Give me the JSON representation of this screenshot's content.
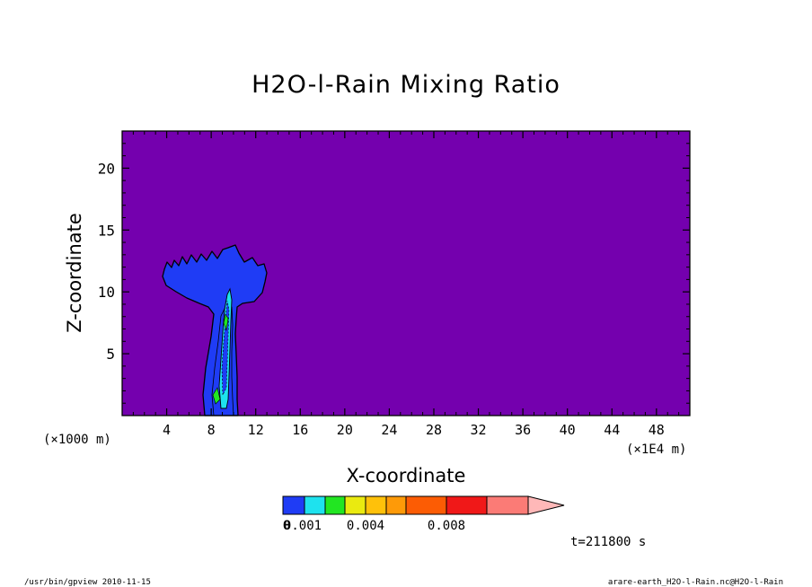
{
  "chart_data": {
    "type": "contour",
    "title": "H2O-l-Rain Mixing Ratio",
    "xlabel": "X-coordinate",
    "ylabel": "Z-coordinate",
    "x_unit_left": "(×1000 m)",
    "x_unit_right": "(×1E4 m)",
    "xlim": [
      0,
      51
    ],
    "ylim": [
      0,
      23
    ],
    "x_ticks": [
      "4",
      "8",
      "12",
      "16",
      "20",
      "24",
      "28",
      "32",
      "36",
      "40",
      "44",
      "48"
    ],
    "y_ticks": [
      "5",
      "10",
      "15",
      "20"
    ],
    "background_color": "#7400ae",
    "colorbar": {
      "colors": [
        "#1f3cf5",
        "#1ee2ee",
        "#22e622",
        "#eaea10",
        "#ffc10a",
        "#fe9a08",
        "#fc5c04",
        "#f01818",
        "#fb7b76",
        "#ffb8b8"
      ],
      "labels": [
        "0",
        "0.001",
        "0.004",
        "0.008"
      ]
    },
    "time_label": "t=211800 s"
  },
  "footer": {
    "left": "/usr/bin/gpview   2010-11-15",
    "right": "arare-earth_H2O-l-Rain.nc@H2O-l-Rain"
  }
}
